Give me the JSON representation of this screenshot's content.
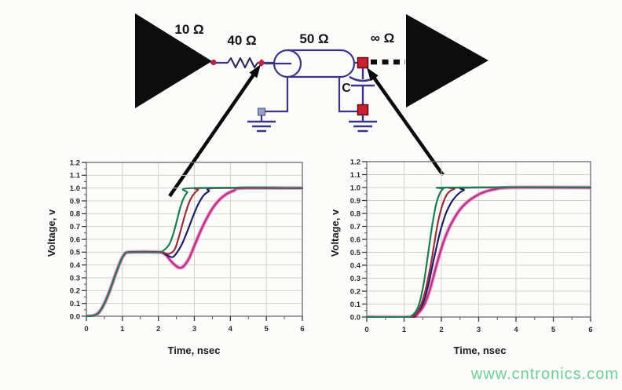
{
  "figure": {
    "description_colors": {
      "wire": "#3c3488",
      "resistor": "#2b2257",
      "node_red": "#cc2030",
      "node_red_border": "#5a0a14",
      "node_blue": "#93a2c6",
      "triangle": "#0d0d0d",
      "arrow": "#0a0a0a",
      "dashed_line": "#0c0c0c"
    }
  },
  "circuit": {
    "driver_impedance_label": "10 Ω",
    "series_resistor_label": "40 Ω",
    "line_impedance_label": "50 Ω",
    "receiver_impedance_label": "∞ Ω",
    "capacitor_label": "C"
  },
  "watermark": {
    "text": "www.cntronics.com",
    "color": "#5fc98b"
  },
  "chart_data": [
    {
      "type": "line",
      "name": "left-voltage-chart",
      "title": "",
      "xlabel": "Time, nsec",
      "ylabel": "Voltage, v",
      "xlim": [
        0,
        6
      ],
      "ylim": [
        0,
        1.2
      ],
      "x_ticks": [
        "0",
        "1",
        "2",
        "3",
        "4",
        "5",
        "6"
      ],
      "y_ticks": [
        "1.2",
        "1.1",
        "1.0",
        "0.9",
        "0.8",
        "0.7",
        "0.6",
        "0.5",
        "0.4",
        "0.3",
        "0.2",
        "0.1",
        "0.0"
      ],
      "x_minor_step": 0.5,
      "y_minor_step": 0.05,
      "grid": true,
      "grid_color": "#ccd5cb",
      "frame_color": "#6b6b6b",
      "series": [
        {
          "name": "magenta-curve",
          "color": "#b23180",
          "glow": "#f27cc6",
          "points": [
            [
              0,
              0
            ],
            [
              0.2,
              0.005
            ],
            [
              0.35,
              0.03
            ],
            [
              0.5,
              0.1
            ],
            [
              0.65,
              0.2
            ],
            [
              0.8,
              0.32
            ],
            [
              0.95,
              0.43
            ],
            [
              1.05,
              0.48
            ],
            [
              1.2,
              0.5
            ],
            [
              2.0,
              0.5
            ],
            [
              2.2,
              0.48
            ],
            [
              2.35,
              0.43
            ],
            [
              2.5,
              0.39
            ],
            [
              2.6,
              0.378
            ],
            [
              2.7,
              0.39
            ],
            [
              2.85,
              0.45
            ],
            [
              3.0,
              0.55
            ],
            [
              3.15,
              0.65
            ],
            [
              3.3,
              0.74
            ],
            [
              3.5,
              0.84
            ],
            [
              3.7,
              0.91
            ],
            [
              3.9,
              0.955
            ],
            [
              4.1,
              0.98
            ],
            [
              4.35,
              1.0
            ],
            [
              6,
              1.0
            ]
          ]
        },
        {
          "name": "navy-curve",
          "color": "#1b2065",
          "points": [
            [
              0,
              0
            ],
            [
              0.2,
              0.005
            ],
            [
              0.35,
              0.03
            ],
            [
              0.5,
              0.1
            ],
            [
              0.65,
              0.2
            ],
            [
              0.8,
              0.32
            ],
            [
              0.95,
              0.43
            ],
            [
              1.05,
              0.48
            ],
            [
              1.2,
              0.5
            ],
            [
              2.0,
              0.5
            ],
            [
              2.15,
              0.49
            ],
            [
              2.3,
              0.468
            ],
            [
              2.4,
              0.462
            ],
            [
              2.5,
              0.49
            ],
            [
              2.65,
              0.56
            ],
            [
              2.8,
              0.66
            ],
            [
              2.95,
              0.77
            ],
            [
              3.1,
              0.87
            ],
            [
              3.25,
              0.94
            ],
            [
              3.4,
              0.975
            ],
            [
              3.6,
              1.0
            ],
            [
              6,
              1.0
            ]
          ]
        },
        {
          "name": "red-curve",
          "color": "#9e2c3c",
          "points": [
            [
              0,
              0
            ],
            [
              0.2,
              0.005
            ],
            [
              0.35,
              0.03
            ],
            [
              0.5,
              0.1
            ],
            [
              0.65,
              0.2
            ],
            [
              0.8,
              0.32
            ],
            [
              0.95,
              0.43
            ],
            [
              1.05,
              0.48
            ],
            [
              1.2,
              0.5
            ],
            [
              2.0,
              0.5
            ],
            [
              2.15,
              0.495
            ],
            [
              2.3,
              0.487
            ],
            [
              2.45,
              0.52
            ],
            [
              2.55,
              0.6
            ],
            [
              2.65,
              0.7
            ],
            [
              2.75,
              0.8
            ],
            [
              2.85,
              0.885
            ],
            [
              2.95,
              0.94
            ],
            [
              3.1,
              0.985
            ],
            [
              3.25,
              1.0
            ],
            [
              6,
              1.0
            ]
          ]
        },
        {
          "name": "green-curve",
          "color": "#1d7c52",
          "points": [
            [
              0,
              0
            ],
            [
              0.2,
              0.005
            ],
            [
              0.35,
              0.03
            ],
            [
              0.5,
              0.1
            ],
            [
              0.65,
              0.2
            ],
            [
              0.8,
              0.32
            ],
            [
              0.95,
              0.43
            ],
            [
              1.05,
              0.48
            ],
            [
              1.2,
              0.5
            ],
            [
              2.0,
              0.5
            ],
            [
              2.15,
              0.515
            ],
            [
              2.3,
              0.56
            ],
            [
              2.4,
              0.63
            ],
            [
              2.5,
              0.73
            ],
            [
              2.6,
              0.84
            ],
            [
              2.7,
              0.92
            ],
            [
              2.8,
              0.965
            ],
            [
              2.95,
              1.0
            ],
            [
              6,
              1.0
            ]
          ]
        }
      ]
    },
    {
      "type": "line",
      "name": "right-voltage-chart",
      "title": "",
      "xlabel": "Time, nsec",
      "ylabel": "Voltage, v",
      "xlim": [
        0,
        6
      ],
      "ylim": [
        0,
        1.2
      ],
      "x_ticks": [
        "0",
        "1",
        "2",
        "3",
        "4",
        "5",
        "6"
      ],
      "y_ticks": [
        "1.2",
        "1.1",
        "1.0",
        "0.9",
        "0.8",
        "0.7",
        "0.6",
        "0.5",
        "0.4",
        "0.3",
        "0.2",
        "0.1",
        "0.0"
      ],
      "x_minor_step": 0.5,
      "y_minor_step": 0.05,
      "grid": true,
      "grid_color": "#ccd5cb",
      "frame_color": "#6b6b6b",
      "series": [
        {
          "name": "magenta-curve",
          "color": "#b23180",
          "glow": "#f27cc6",
          "points": [
            [
              0,
              0
            ],
            [
              1.2,
              0
            ],
            [
              1.35,
              0.02
            ],
            [
              1.55,
              0.1
            ],
            [
              1.7,
              0.22
            ],
            [
              1.85,
              0.38
            ],
            [
              2.0,
              0.53
            ],
            [
              2.15,
              0.65
            ],
            [
              2.3,
              0.74
            ],
            [
              2.5,
              0.83
            ],
            [
              2.7,
              0.89
            ],
            [
              2.9,
              0.93
            ],
            [
              3.1,
              0.96
            ],
            [
              3.4,
              0.985
            ],
            [
              3.9,
              1.0
            ],
            [
              6,
              1.0
            ]
          ]
        },
        {
          "name": "navy-curve",
          "color": "#1b2065",
          "points": [
            [
              0,
              0
            ],
            [
              1.15,
              0
            ],
            [
              1.3,
              0.02
            ],
            [
              1.5,
              0.1
            ],
            [
              1.65,
              0.25
            ],
            [
              1.8,
              0.45
            ],
            [
              1.95,
              0.64
            ],
            [
              2.05,
              0.74
            ],
            [
              2.15,
              0.82
            ],
            [
              2.3,
              0.9
            ],
            [
              2.45,
              0.95
            ],
            [
              2.6,
              0.98
            ],
            [
              2.8,
              1.0
            ],
            [
              6,
              1.0
            ]
          ]
        },
        {
          "name": "red-curve",
          "color": "#9e2c3c",
          "points": [
            [
              0,
              0
            ],
            [
              1.1,
              0
            ],
            [
              1.25,
              0.01
            ],
            [
              1.4,
              0.06
            ],
            [
              1.55,
              0.18
            ],
            [
              1.7,
              0.38
            ],
            [
              1.8,
              0.55
            ],
            [
              1.9,
              0.72
            ],
            [
              2.0,
              0.84
            ],
            [
              2.1,
              0.92
            ],
            [
              2.2,
              0.965
            ],
            [
              2.35,
              0.99
            ],
            [
              2.5,
              1.0
            ],
            [
              6,
              1.0
            ]
          ]
        },
        {
          "name": "green-curve",
          "color": "#1d7c52",
          "points": [
            [
              0,
              0
            ],
            [
              1.05,
              0
            ],
            [
              1.2,
              0.01
            ],
            [
              1.35,
              0.06
            ],
            [
              1.45,
              0.15
            ],
            [
              1.55,
              0.3
            ],
            [
              1.65,
              0.5
            ],
            [
              1.75,
              0.7
            ],
            [
              1.85,
              0.86
            ],
            [
              1.95,
              0.95
            ],
            [
              2.05,
              0.99
            ],
            [
              2.2,
              1.0
            ],
            [
              6,
              1.0
            ]
          ]
        }
      ]
    }
  ]
}
